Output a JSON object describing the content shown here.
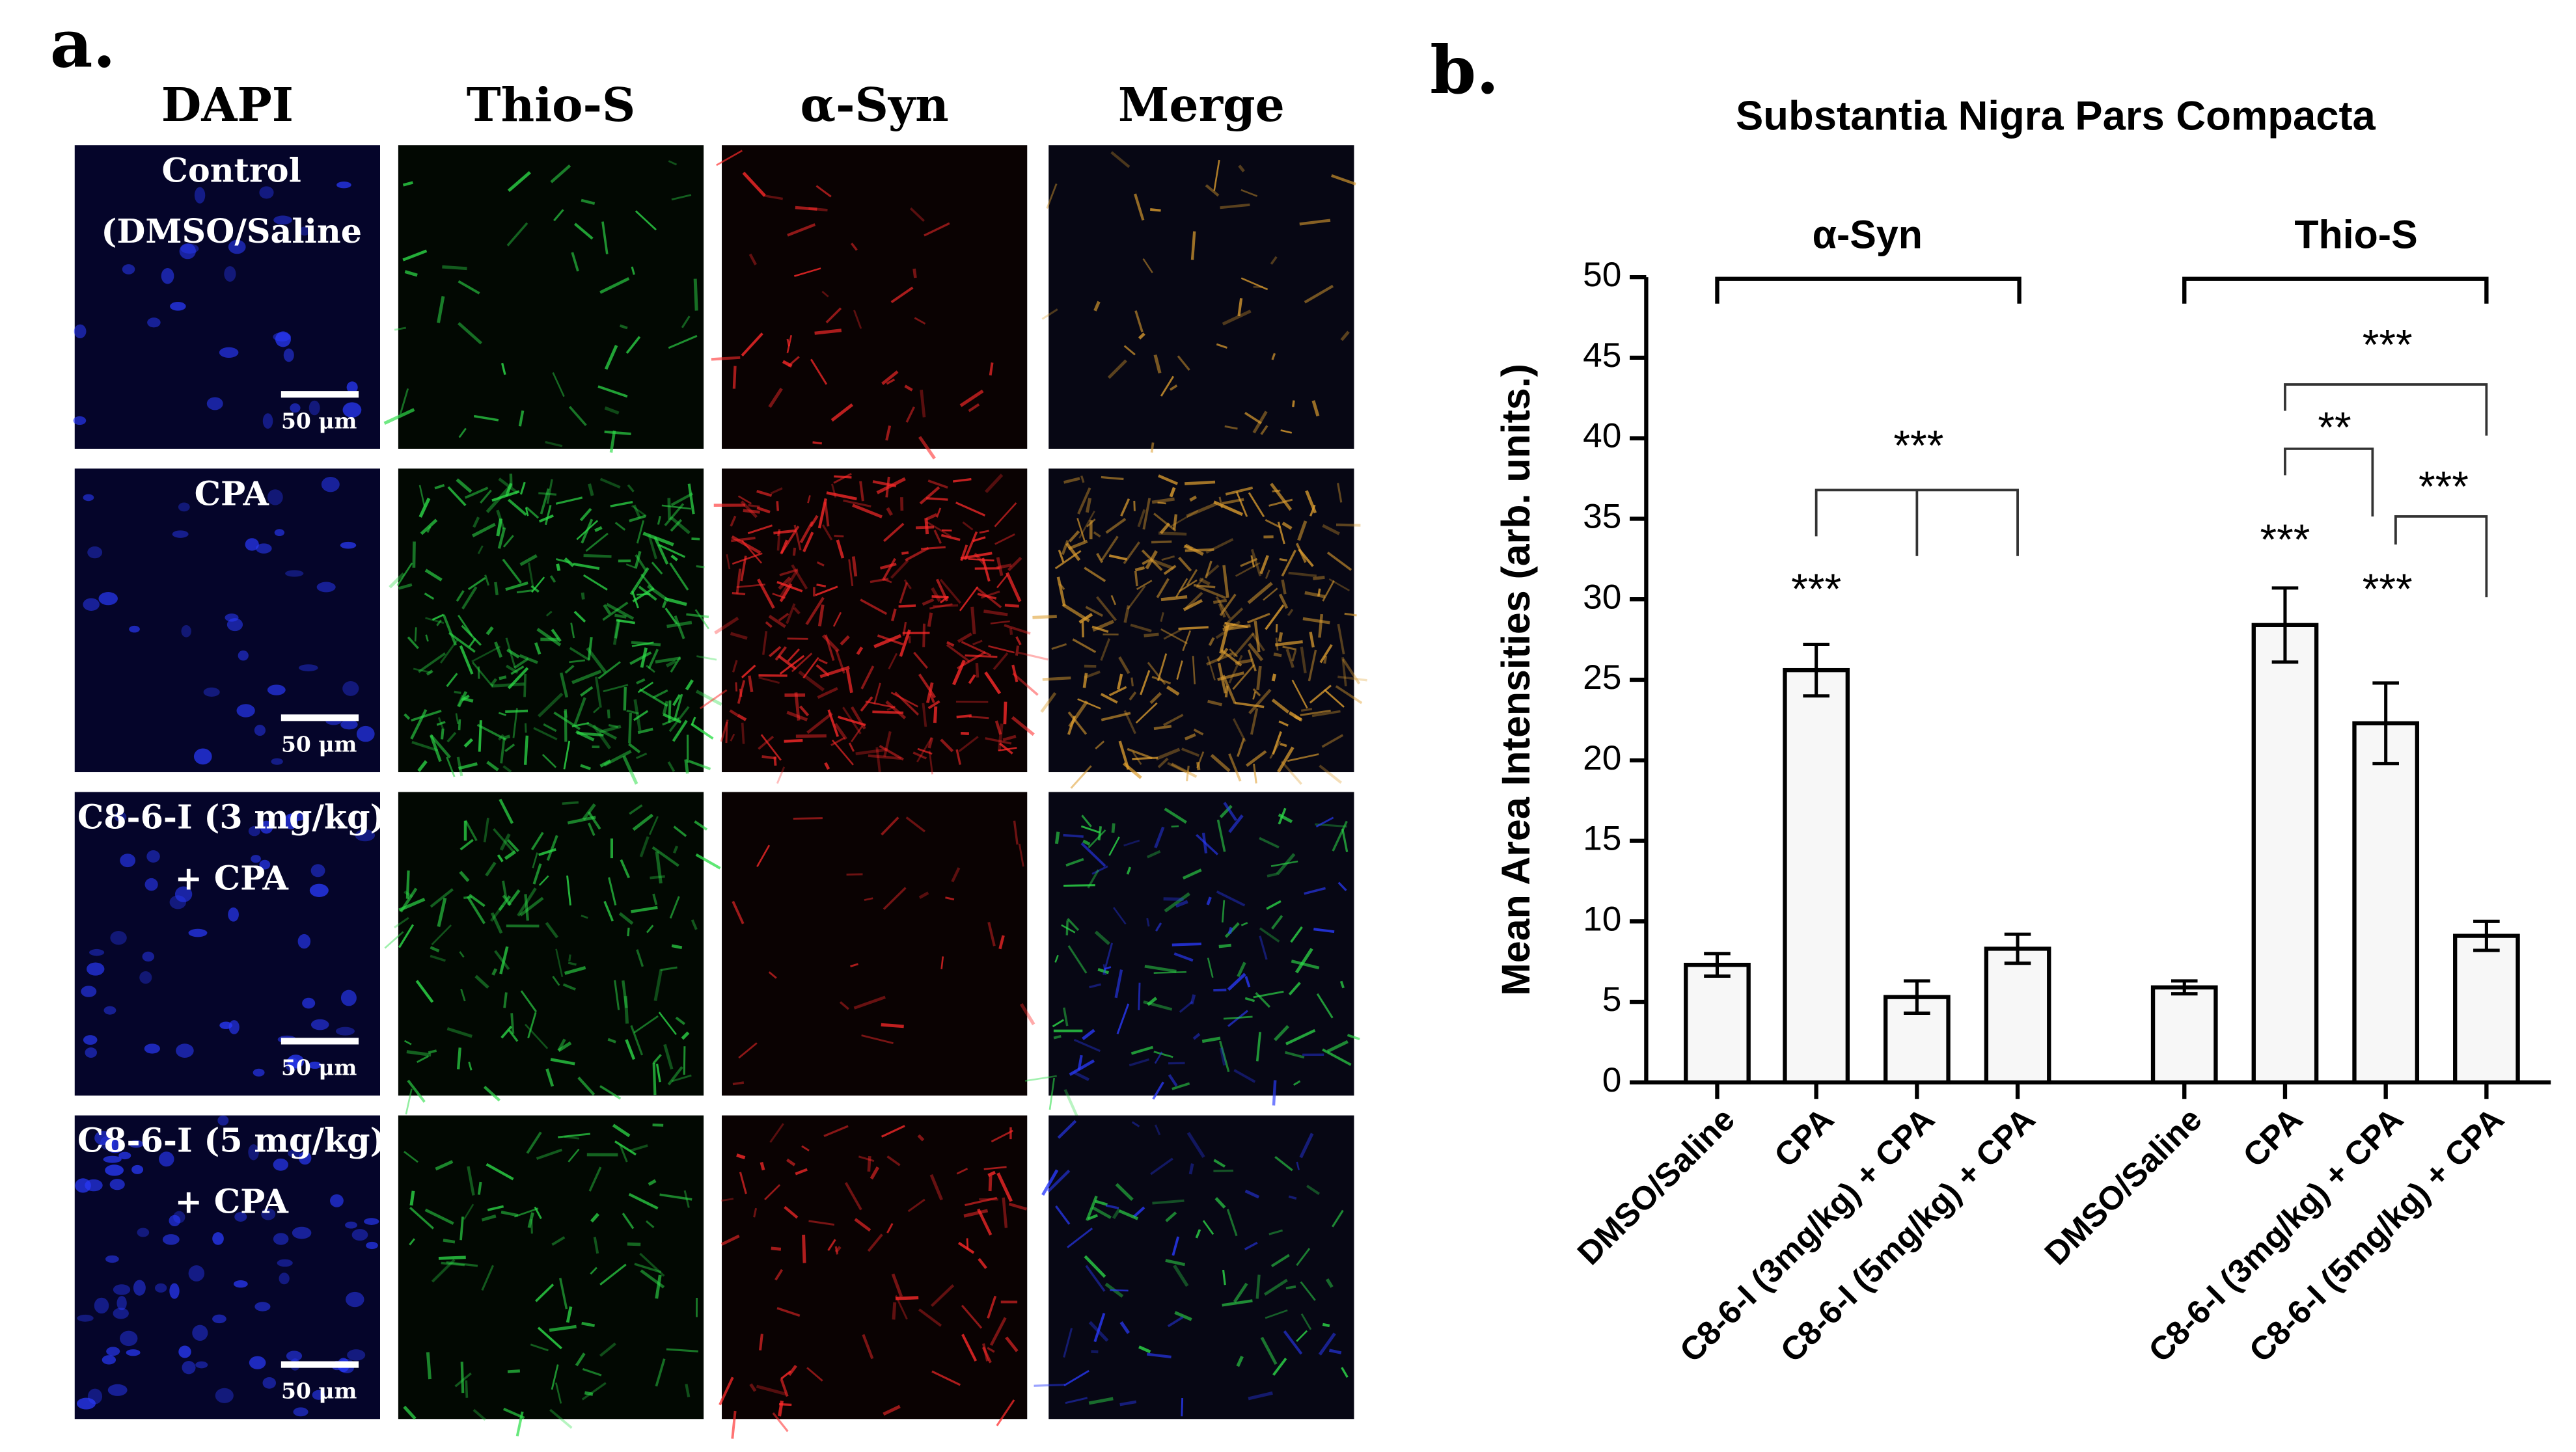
{
  "panel_a": {
    "label": "a.",
    "columns": [
      "DAPI",
      "Thio-S",
      "α-Syn",
      "Merge"
    ],
    "rows": [
      {
        "label_lines": [
          "Control",
          "(DMSO/Saline"
        ],
        "scale_bar_label": "50 μm"
      },
      {
        "label_lines": [
          "CPA"
        ],
        "scale_bar_label": "50 μm"
      },
      {
        "label_lines": [
          "C8-6-I (3 mg/kg)",
          "+ CPA"
        ],
        "scale_bar_label": "50 μm"
      },
      {
        "label_lines": [
          "C8-6-I (5 mg/kg)",
          "+ CPA"
        ],
        "scale_bar_label": "50 μm"
      }
    ]
  },
  "chart_data": {
    "type": "bar",
    "panel_label": "b.",
    "title": "Substantia Nigra Pars Compacta",
    "y_label": "Mean Area Intensities (arb. units.)",
    "groups": [
      "α-Syn",
      "Thio-S"
    ],
    "categories": [
      "DMSO/Saline",
      "CPA",
      "C8-6-I (3mg/kg) + CPA",
      "C8-6-I (5mg/kg) + CPA",
      "DMSO/Saline",
      "CPA",
      "C8-6-I (3mg/kg) + CPA",
      "C8-6-I (5mg/kg) + CPA"
    ],
    "values": [
      7.3,
      25.6,
      5.3,
      8.3,
      5.9,
      28.4,
      22.3,
      9.1
    ],
    "errors": [
      0.7,
      1.6,
      1.0,
      0.9,
      0.4,
      2.3,
      2.5,
      0.9
    ],
    "color": "#f7f7f7",
    "ylim": [
      0,
      50
    ],
    "yticks": [
      0,
      5,
      10,
      15,
      20,
      25,
      30,
      35,
      40,
      45,
      50
    ],
    "annotations": [
      "***",
      "***",
      "***",
      "***",
      "**",
      "***",
      "***"
    ]
  }
}
